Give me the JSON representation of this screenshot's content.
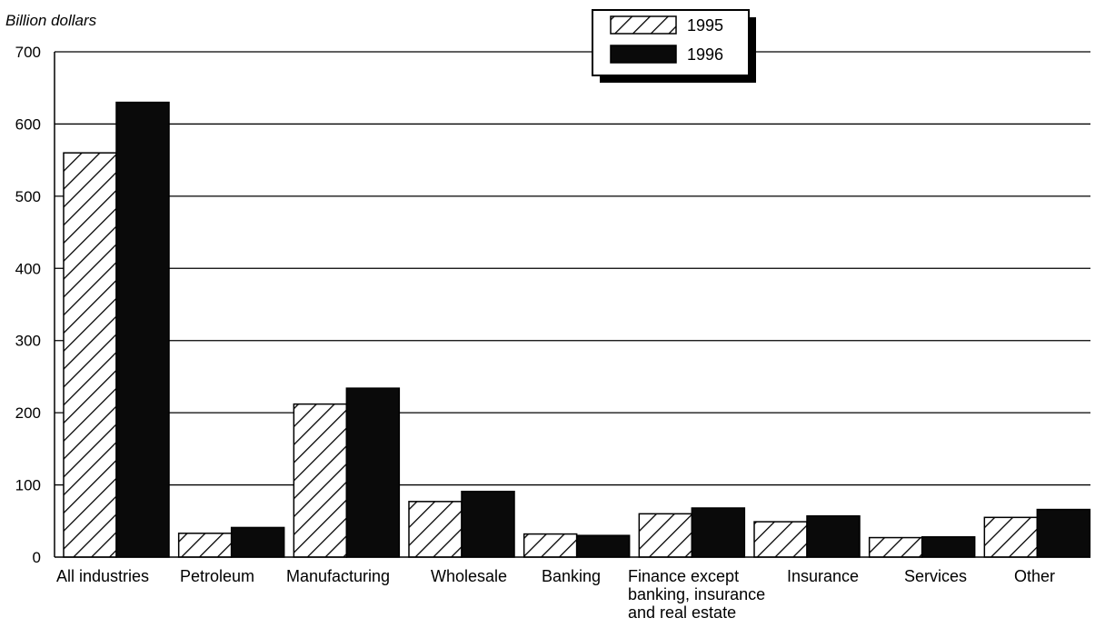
{
  "chart_data": {
    "type": "bar",
    "ylabel": "Billion dollars",
    "xlabel": "",
    "title": "",
    "ylim": [
      0,
      700
    ],
    "yticks": [
      0,
      100,
      200,
      300,
      400,
      500,
      600,
      700
    ],
    "grid": true,
    "legend_position": "top-center",
    "categories": [
      [
        "All industries"
      ],
      [
        "Petroleum"
      ],
      [
        "Manufacturing"
      ],
      [
        "Wholesale"
      ],
      [
        "Banking"
      ],
      [
        "Finance except",
        "banking, insurance",
        "and real estate"
      ],
      [
        "Insurance"
      ],
      [
        "Services"
      ],
      [
        "Other"
      ]
    ],
    "series": [
      {
        "name": "1995",
        "pattern": "diagonal-hatch",
        "color": "#000000",
        "values": [
          560,
          33,
          212,
          77,
          32,
          60,
          49,
          27,
          55
        ]
      },
      {
        "name": "1996",
        "pattern": "solid-dark",
        "color": "#0a0a0a",
        "values": [
          630,
          41,
          234,
          91,
          30,
          68,
          57,
          28,
          66
        ]
      }
    ]
  }
}
